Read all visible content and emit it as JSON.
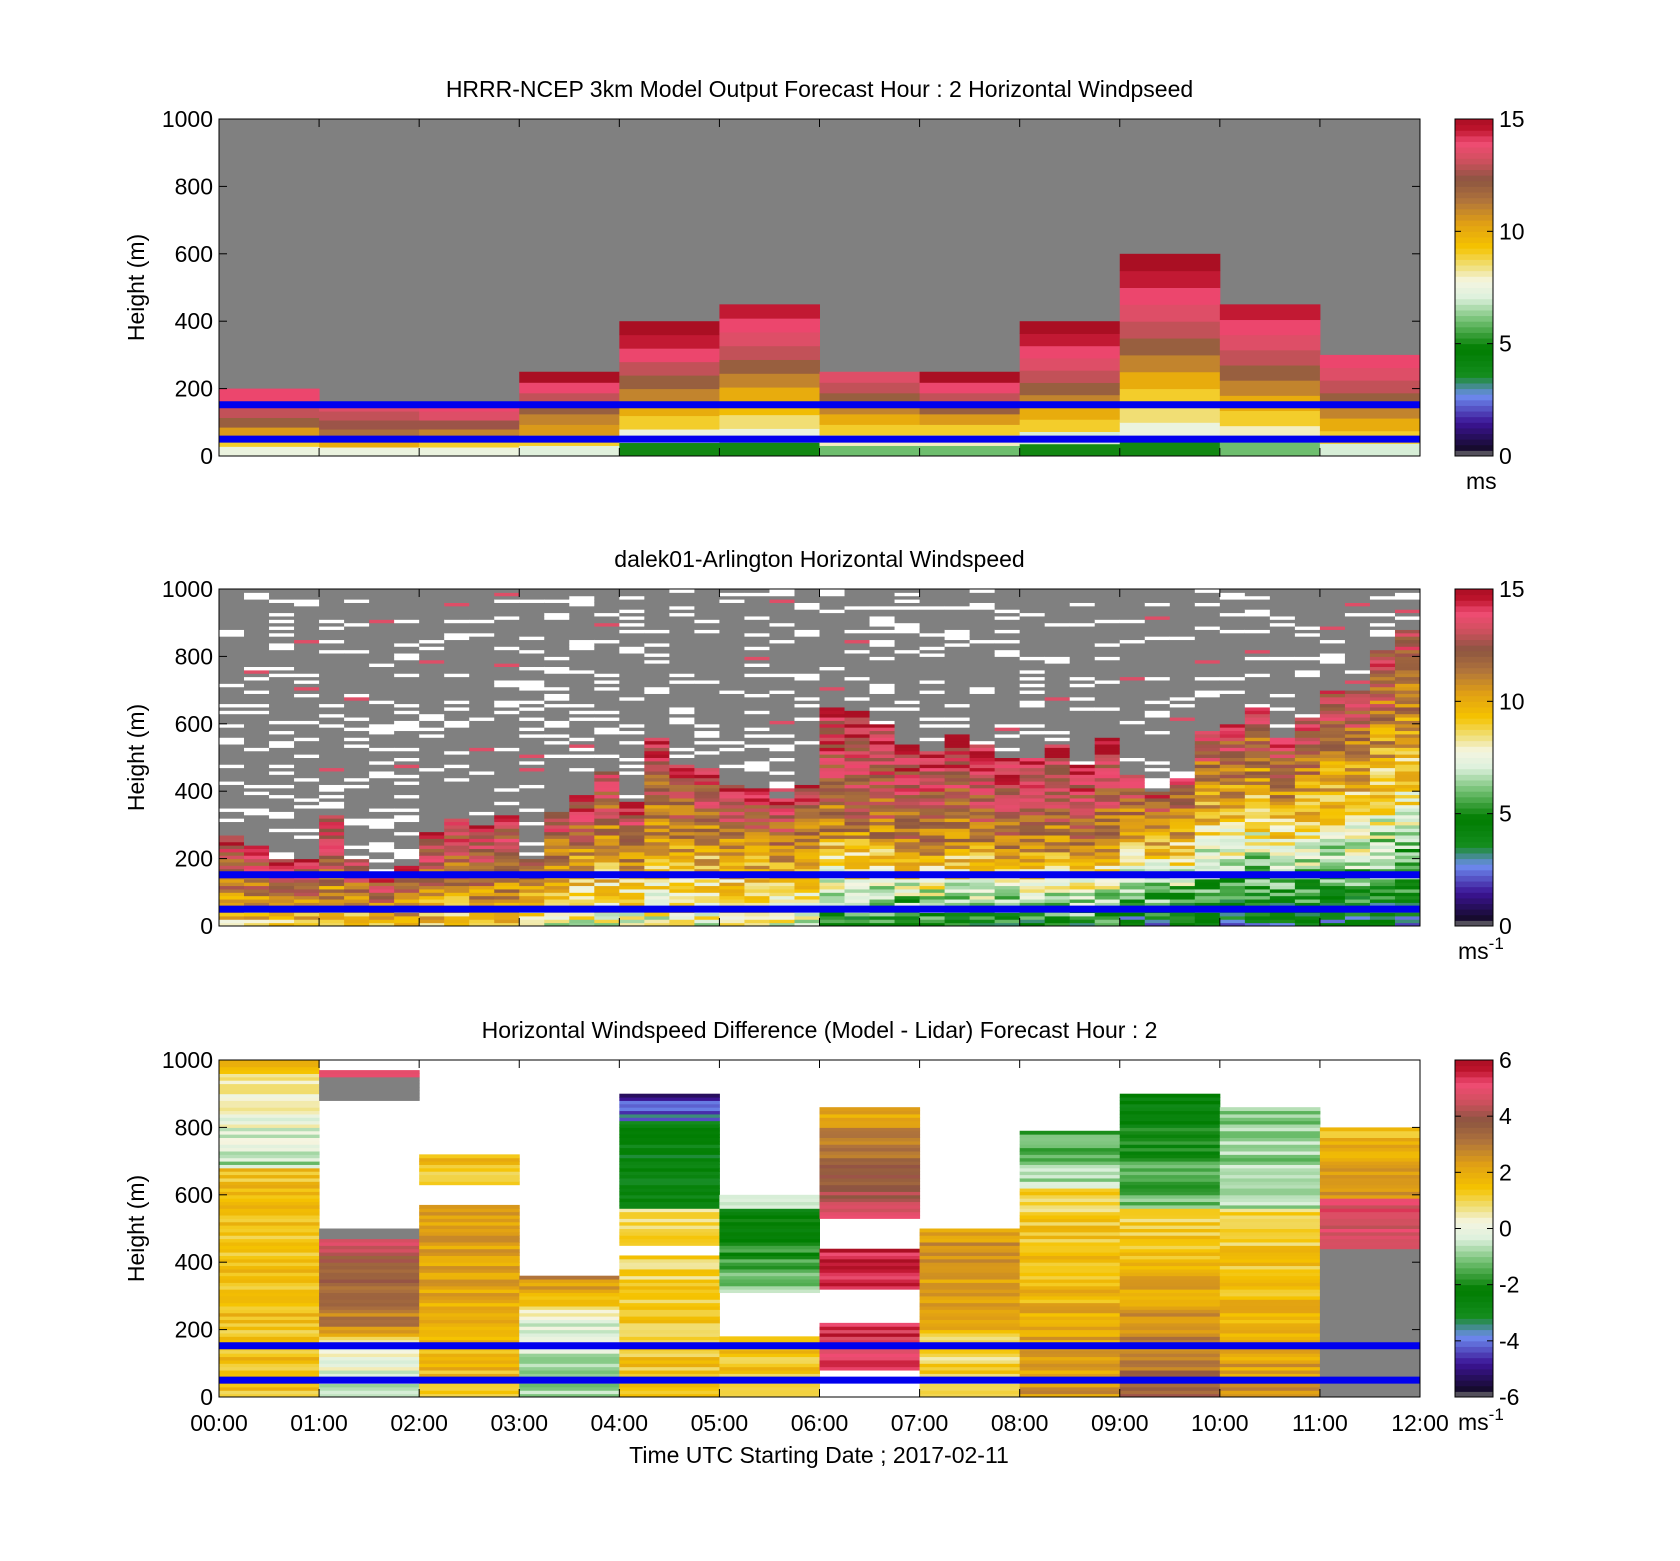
{
  "figure": {
    "x_ticks": [
      "00:00",
      "01:00",
      "02:00",
      "03:00",
      "04:00",
      "05:00",
      "06:00",
      "07:00",
      "08:00",
      "09:00",
      "10:00",
      "11:00",
      "12:00"
    ],
    "x_label": "Time UTC  Starting Date ; 2017-02-11",
    "guide_lines_m": [
      50,
      152
    ]
  },
  "chart_data": [
    {
      "type": "heatmap",
      "title": "HRRR-NCEP 3km Model Output   Forecast Hour : 2 Horizontal Windpseed",
      "ylabel": "Height (m)",
      "xlim": [
        "00:00",
        "12:00"
      ],
      "ylim": [
        0,
        1000
      ],
      "y_ticks": [
        "0",
        "200",
        "400",
        "600",
        "800",
        "1000"
      ],
      "colorbar": {
        "min": 0,
        "max": 15,
        "ticks": [
          "0",
          "5",
          "10",
          "15"
        ],
        "unit": "ms",
        "unit_sup": ""
      },
      "background": "#808080",
      "missing_color": "#808080",
      "columns": [
        {
          "x": [
            "00:00",
            "01:00"
          ],
          "top": 200,
          "profile": [
            7.5,
            9,
            10.5,
            12,
            13,
            14,
            14
          ]
        },
        {
          "x": [
            "01:00",
            "02:00"
          ],
          "top": 160,
          "profile": [
            7.5,
            10,
            11.5,
            12.5,
            13,
            13.5
          ]
        },
        {
          "x": [
            "02:00",
            "03:00"
          ],
          "top": 160,
          "profile": [
            7.5,
            9,
            11,
            12.5,
            13.5,
            14
          ]
        },
        {
          "x": [
            "03:00",
            "04:00"
          ],
          "top": 250,
          "profile": [
            7.2,
            9,
            10.5,
            11,
            12,
            13,
            14,
            15
          ]
        },
        {
          "x": [
            "04:00",
            "05:00"
          ],
          "top": 400,
          "profile": [
            5,
            7.5,
            9,
            10,
            11,
            12,
            13,
            14,
            14.5,
            15
          ]
        },
        {
          "x": [
            "05:00",
            "06:00"
          ],
          "top": 450,
          "profile": [
            5,
            7.5,
            8.5,
            9.5,
            10,
            11,
            12,
            13,
            13.5,
            14,
            14.5
          ]
        },
        {
          "x": [
            "06:00",
            "07:00"
          ],
          "top": 250,
          "profile": [
            6,
            8,
            9,
            10,
            11,
            12,
            13,
            13.5
          ]
        },
        {
          "x": [
            "07:00",
            "08:00"
          ],
          "top": 250,
          "profile": [
            6,
            8,
            9,
            10.5,
            12,
            13,
            14,
            15
          ]
        },
        {
          "x": [
            "08:00",
            "09:00"
          ],
          "top": 400,
          "profile": [
            5,
            7,
            9,
            10,
            11,
            12,
            13,
            13.5,
            14,
            14.5,
            15
          ]
        },
        {
          "x": [
            "09:00",
            "10:00"
          ],
          "top": 600,
          "profile": [
            5,
            7.5,
            8.5,
            9,
            10,
            11,
            12,
            13,
            13.5,
            14,
            14.5,
            15
          ]
        },
        {
          "x": [
            "10:00",
            "11:00"
          ],
          "top": 450,
          "profile": [
            6,
            8,
            9,
            10,
            11,
            12,
            13,
            13.5,
            14,
            14.5
          ]
        },
        {
          "x": [
            "11:00",
            "12:00"
          ],
          "top": 300,
          "profile": [
            7,
            9,
            10,
            11,
            12,
            13,
            13.5,
            14
          ]
        }
      ]
    },
    {
      "type": "heatmap",
      "title": "dalek01-Arlington  Horizontal Windspeed",
      "ylabel": "Height (m)",
      "xlim": [
        "00:00",
        "12:00"
      ],
      "ylim": [
        0,
        1000
      ],
      "y_ticks": [
        "0",
        "200",
        "400",
        "600",
        "800",
        "1000"
      ],
      "colorbar": {
        "min": 0,
        "max": 15,
        "ticks": [
          "0",
          "5",
          "10",
          "15"
        ],
        "unit": "ms",
        "unit_sup": "-1"
      },
      "background": "#808080",
      "missing_color": "#ffffff",
      "n_columns": 48,
      "data_top_m": [
        270,
        240,
        200,
        200,
        330,
        200,
        160,
        180,
        280,
        320,
        300,
        330,
        200,
        340,
        390,
        460,
        370,
        550,
        480,
        470,
        420,
        410,
        380,
        420,
        650,
        640,
        600,
        540,
        520,
        570,
        540,
        500,
        500,
        540,
        480,
        560,
        450,
        400,
        440,
        580,
        600,
        650,
        560,
        620,
        700,
        700,
        820,
        880
      ],
      "profile_ranges": [
        {
          "x": [
            "00:00",
            "03:00"
          ],
          "low_m_s": 9,
          "mid_m_s": 11.5,
          "high_m_s": 14
        },
        {
          "x": [
            "03:00",
            "06:00"
          ],
          "low_m_s": 7.5,
          "mid_m_s": 10,
          "high_m_s": 14
        },
        {
          "x": [
            "06:00",
            "09:00"
          ],
          "low_m_s": 4.5,
          "mid_m_s": 11,
          "high_m_s": 14.5
        },
        {
          "x": [
            "09:00",
            "12:00"
          ],
          "low_m_s": 3.5,
          "mid_m_s": 8.5,
          "high_m_s": 13.5
        }
      ]
    },
    {
      "type": "heatmap",
      "title": "Horizontal Windspeed Difference (Model - Lidar) Forecast Hour : 2",
      "ylabel": "Height (m)",
      "xlim": [
        "00:00",
        "12:00"
      ],
      "ylim": [
        0,
        1000
      ],
      "y_ticks": [
        "0",
        "200",
        "400",
        "600",
        "800",
        "1000"
      ],
      "colorbar": {
        "min": -6,
        "max": 6,
        "ticks": [
          "-6",
          "-4",
          "-2",
          "0",
          "2",
          "4",
          "6"
        ],
        "unit": "ms",
        "unit_sup": "-1"
      },
      "background": "#ffffff",
      "columns": [
        {
          "x": [
            "00:00",
            "01:00"
          ],
          "segments": [
            [
              0,
              680,
              1.5,
              1.5
            ],
            [
              680,
              980,
              -0.8,
              1.2
            ],
            [
              980,
              1000,
              1.5,
              1.5
            ]
          ]
        },
        {
          "x": [
            "01:00",
            "02:00"
          ],
          "segments": [
            [
              0,
              180,
              -0.5,
              0.5
            ],
            [
              180,
              470,
              2.5,
              4.5
            ],
            [
              470,
              500,
              "gap",
              0
            ],
            [
              880,
              950,
              "gap",
              0
            ],
            [
              950,
              970,
              5.5,
              5.5
            ]
          ]
        },
        {
          "x": [
            "02:00",
            "03:00"
          ],
          "segments": [
            [
              0,
              570,
              1.5,
              2.5
            ],
            [
              630,
              720,
              1.5,
              1.5
            ]
          ]
        },
        {
          "x": [
            "03:00",
            "04:00"
          ],
          "segments": [
            [
              0,
              240,
              -0.8,
              -0.2
            ],
            [
              240,
              360,
              0.5,
              3
            ]
          ]
        },
        {
          "x": [
            "04:00",
            "05:00"
          ],
          "segments": [
            [
              0,
              420,
              1.5,
              1
            ],
            [
              450,
              560,
              0.8,
              1
            ],
            [
              560,
              820,
              -2.5,
              -2.8
            ],
            [
              820,
              900,
              -3.8,
              -5
            ]
          ]
        },
        {
          "x": [
            "05:00",
            "06:00"
          ],
          "segments": [
            [
              0,
              180,
              1.2,
              1.5
            ],
            [
              310,
              560,
              -0.8,
              -2.8
            ],
            [
              560,
              600,
              -0.5,
              -0.5
            ]
          ]
        },
        {
          "x": [
            "06:00",
            "07:00"
          ],
          "segments": [
            [
              80,
              220,
              5,
              5.5
            ],
            [
              320,
              440,
              5.5,
              5.5
            ],
            [
              530,
              860,
              4.8,
              2
            ]
          ]
        },
        {
          "x": [
            "07:00",
            "08:00"
          ],
          "segments": [
            [
              0,
              200,
              1,
              1
            ],
            [
              200,
              500,
              2,
              2.5
            ]
          ]
        },
        {
          "x": [
            "08:00",
            "09:00"
          ],
          "segments": [
            [
              0,
              620,
              2.5,
              1
            ],
            [
              620,
              790,
              -0.5,
              -1.8
            ]
          ]
        },
        {
          "x": [
            "09:00",
            "10:00"
          ],
          "segments": [
            [
              0,
              560,
              3.5,
              1
            ],
            [
              560,
              900,
              -1,
              -2.8
            ]
          ]
        },
        {
          "x": [
            "10:00",
            "11:00"
          ],
          "segments": [
            [
              0,
              560,
              2.5,
              1
            ],
            [
              560,
              860,
              -0.8,
              -1
            ]
          ]
        },
        {
          "x": [
            "11:00",
            "12:00"
          ],
          "segments": [
            [
              0,
              440,
              "gap",
              0
            ],
            [
              440,
              590,
              4.5,
              5
            ],
            [
              590,
              800,
              2.5,
              1.5
            ]
          ]
        }
      ]
    }
  ],
  "colors": {
    "guide_line": "#0000ee",
    "missing_gray": "#808080"
  }
}
